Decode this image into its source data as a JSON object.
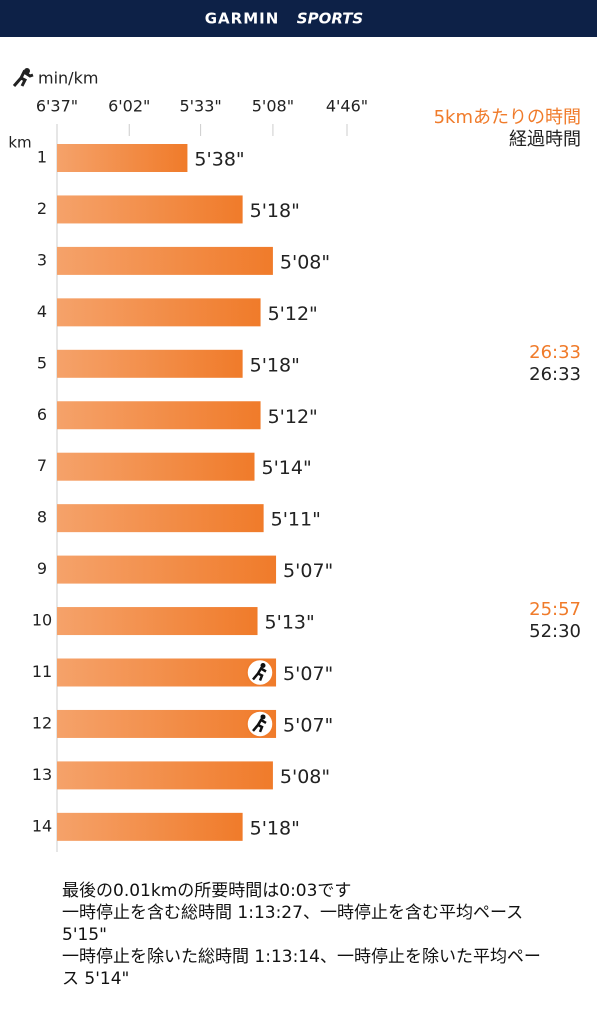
{
  "header": {
    "brand": "GARMIN",
    "sub_brand": "SPORTS"
  },
  "chart_data": {
    "type": "hbar",
    "x_label": "min/km",
    "y_label": "km",
    "categories": [
      "1",
      "2",
      "3",
      "4",
      "5",
      "6",
      "7",
      "8",
      "9",
      "10",
      "11",
      "12",
      "13",
      "14"
    ],
    "values": [
      338,
      318,
      308,
      312,
      318,
      312,
      314,
      311,
      307,
      313,
      307,
      307,
      308,
      318
    ],
    "value_labels": [
      "5'38\"",
      "5'18\"",
      "5'08\"",
      "5'12\"",
      "5'18\"",
      "5'12\"",
      "5'14\"",
      "5'11\"",
      "5'07\"",
      "5'13\"",
      "5'07\"",
      "5'07\"",
      "5'08\"",
      "5'18\""
    ],
    "color": "#f07b2a",
    "xscale": "reciprocal",
    "xlim": [
      397,
      286
    ],
    "xticks": [
      {
        "value": 397,
        "label": "6'37\""
      },
      {
        "value": 362,
        "label": "6'02\""
      },
      {
        "value": 333,
        "label": "5'33\""
      },
      {
        "value": 308,
        "label": "5'08\""
      },
      {
        "value": 286,
        "label": "4'46\""
      }
    ],
    "split_title": "5kmあたりの時間",
    "split_color": "#f07b2a",
    "elapsed_title": "経過時間",
    "split_time": [
      null,
      null,
      null,
      null,
      "26:33",
      null,
      null,
      null,
      null,
      "25:57",
      null,
      null,
      null,
      null
    ],
    "elapsed_time": [
      null,
      null,
      null,
      null,
      "26:33",
      null,
      null,
      null,
      null,
      "52:30",
      null,
      null,
      null,
      null
    ]
  },
  "notes": [
    "最後の0.01kmの所要時間は0:03です",
    "一時停止を含む総時間 1:13:27、一時停止を含む平均ペース 5'15\"",
    "一時停止を除いた総時間 1:13:14、一時停止を除いた平均ペース 5'14\""
  ]
}
